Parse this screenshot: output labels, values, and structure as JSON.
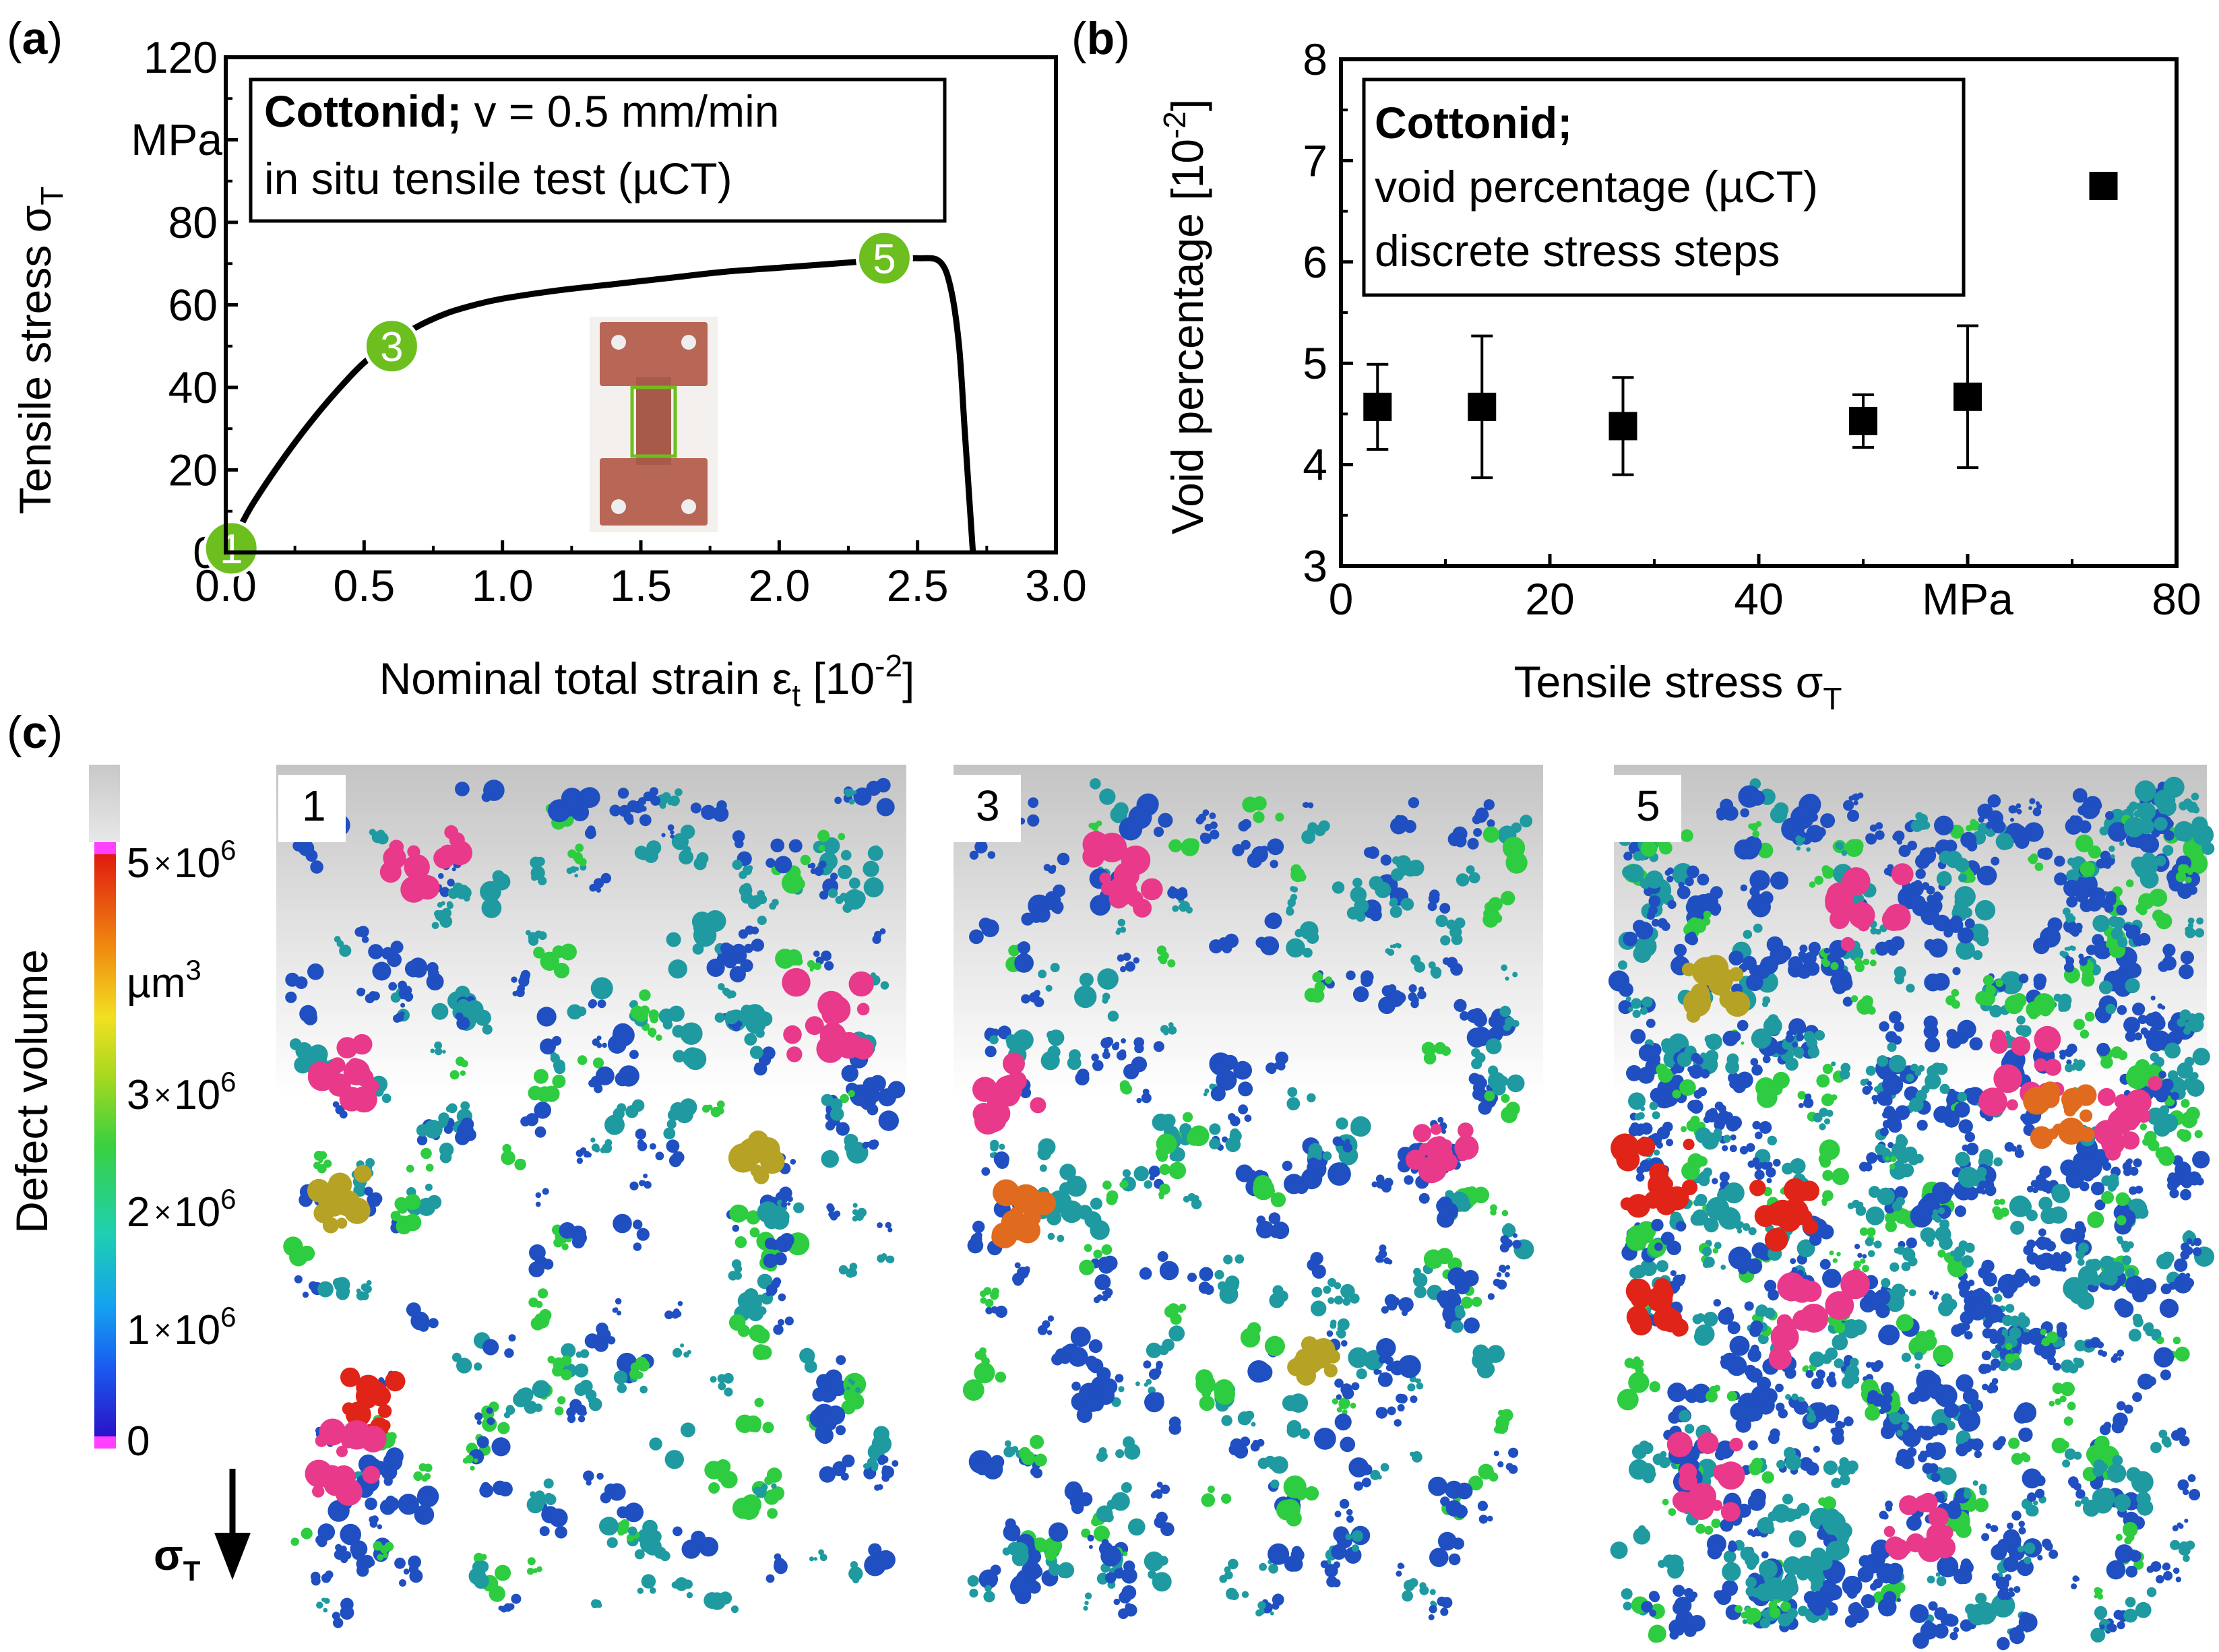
{
  "chart_data": [
    {
      "panel": "(a)",
      "type": "line",
      "title": "",
      "legend_box": {
        "line1_bold": "Cottonid;",
        "line1_rest": " v = 0.5 mm/min",
        "line2": "in situ tensile test (µCT)"
      },
      "xlabel_main": "Nominal total strain ε",
      "xlabel_sub": "t",
      "xlabel_unit": " [10",
      "xlabel_sup": "-2",
      "xlabel_close": "]",
      "ylabel_main": "Tensile stress σ",
      "ylabel_sub": "T",
      "y_unit_label": "MPa",
      "xlim": [
        0,
        3.0
      ],
      "ylim": [
        0,
        120
      ],
      "xticks": [
        "0.0",
        "0.5",
        "1.0",
        "1.5",
        "2.0",
        "2.5",
        "3.0"
      ],
      "yticks": [
        "0",
        "20",
        "40",
        "60",
        "80",
        "",
        "120"
      ],
      "curve": {
        "x": [
          0.0,
          0.05,
          0.1,
          0.2,
          0.3,
          0.4,
          0.5,
          0.6,
          0.7,
          0.8,
          0.9,
          1.0,
          1.2,
          1.4,
          1.6,
          1.8,
          2.0,
          2.2,
          2.4,
          2.5,
          2.58,
          2.62,
          2.65,
          2.67,
          2.69,
          2.7
        ],
        "y": [
          0,
          6,
          12,
          22,
          31,
          39,
          46,
          51,
          55,
          58,
          60,
          61.5,
          63.5,
          65,
          66.5,
          68,
          69,
          70,
          71,
          71.3,
          70.5,
          64,
          50,
          30,
          10,
          0
        ]
      },
      "markers": [
        {
          "label": "1",
          "x": 0.02,
          "y": 1
        },
        {
          "label": "3",
          "x": 0.6,
          "y": 50
        },
        {
          "label": "5",
          "x": 2.38,
          "y": 71.3
        }
      ]
    },
    {
      "panel": "(b)",
      "type": "scatter",
      "title": "",
      "legend_box": {
        "line1_bold": "Cottonid;",
        "line2": "void percentage (µCT)",
        "line3": "discrete stress steps"
      },
      "xlabel_main": "Tensile stress σ",
      "xlabel_sub": "T",
      "ylabel_main": "Void percentage [10",
      "ylabel_sup": "-2",
      "ylabel_close": "]",
      "xlim": [
        0,
        80
      ],
      "ylim": [
        3,
        8
      ],
      "xticks": [
        "0",
        "20",
        "40",
        "MPa",
        "80"
      ],
      "yticks": [
        "3",
        "4",
        "5",
        "6",
        "7",
        "8"
      ],
      "series": [
        {
          "name": "void percentage",
          "x": [
            3.5,
            13.5,
            27,
            50,
            60,
            73
          ],
          "y": [
            4.57,
            4.57,
            4.38,
            4.43,
            4.67,
            6.75
          ],
          "err": [
            0.42,
            0.7,
            0.48,
            0.26,
            0.7,
            0.0
          ]
        }
      ]
    }
  ],
  "figure": {
    "panel_a_label": "(a)",
    "panel_b_label": "(b)",
    "panel_c_label": "(c)",
    "panel_c": {
      "colorbar_title": "Defect volume",
      "colorbar_ticks": [
        {
          "mant": "5",
          "times": "×",
          "base": "10",
          "exp": "6"
        },
        {
          "mant": "3",
          "times": "×",
          "base": "10",
          "exp": "6"
        },
        {
          "mant": "2",
          "times": "×",
          "base": "10",
          "exp": "6"
        },
        {
          "mant": "1",
          "times": "×",
          "base": "10",
          "exp": "6"
        },
        {
          "mant": "0",
          "times": "",
          "base": "",
          "exp": ""
        }
      ],
      "colorbar_unit_main": "µm",
      "colorbar_unit_sup": "3",
      "stress_label_main": "σ",
      "stress_label_sub": "T",
      "scans": [
        "1",
        "3",
        "5"
      ],
      "colors": {
        "blue": "#1f4fc0",
        "teal": "#1e9aa0",
        "green": "#2ecc40",
        "pink": "#e8398a",
        "red": "#e02418",
        "olive": "#b6a224",
        "orange": "#e06a1e"
      }
    },
    "marker_color": "#6cbf1e"
  }
}
